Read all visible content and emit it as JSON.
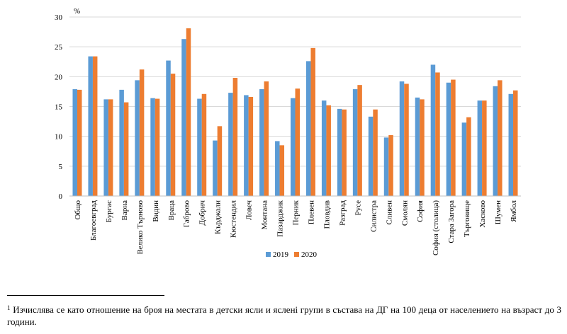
{
  "chart_data": {
    "type": "bar",
    "unit_label": "%",
    "ylim": [
      0,
      30
    ],
    "yticks": [
      0,
      5,
      10,
      15,
      20,
      25,
      30
    ],
    "grid": true,
    "legend_position": "bottom-center",
    "categories": [
      "Общо",
      "Благоевград",
      "Бургас",
      "Варна",
      "Велико Търново",
      "Видин",
      "Враца",
      "Габрово",
      "Добрич",
      "Кърджали",
      "Кюстендил",
      "Ловеч",
      "Монтана",
      "Пазарджик",
      "Перник",
      "Плевен",
      "Пловдив",
      "Разград",
      "Русе",
      "Силистра",
      "Сливен",
      "Смолян",
      "София",
      "София (столица)",
      "Стара Загора",
      "Търговище",
      "Хасково",
      "Шумен",
      "Ямбол"
    ],
    "series": [
      {
        "name": "2019",
        "color": "#5b9bd5",
        "values": [
          17.9,
          23.4,
          16.2,
          17.8,
          19.4,
          16.4,
          22.7,
          26.3,
          16.3,
          9.3,
          17.3,
          16.9,
          17.9,
          9.2,
          16.4,
          22.6,
          16.0,
          14.6,
          17.9,
          13.3,
          9.8,
          19.2,
          16.5,
          22.0,
          19.0,
          12.3,
          16.0,
          18.4,
          17.1
        ]
      },
      {
        "name": "2020",
        "color": "#ed7d31",
        "values": [
          17.8,
          23.4,
          16.2,
          15.7,
          21.2,
          16.3,
          20.5,
          28.1,
          17.1,
          11.7,
          19.8,
          16.6,
          19.2,
          8.5,
          18.0,
          24.8,
          15.2,
          14.5,
          18.6,
          14.5,
          10.2,
          18.8,
          16.2,
          20.7,
          19.5,
          13.2,
          16.0,
          19.4,
          17.7
        ]
      }
    ]
  },
  "footnote": {
    "marker": "1",
    "text": "Изчислява се като отношение на броя на местата в детски ясли и ясленi групи в състава на ДГ на 100 деца от населението на възраст до 3 години."
  }
}
